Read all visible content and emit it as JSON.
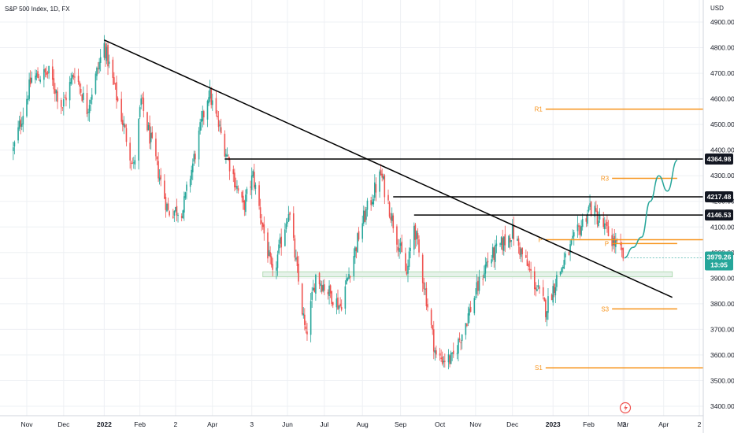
{
  "header": {
    "title": "S&P 500 Index, 1D, FX"
  },
  "colors": {
    "up": "#26a69a",
    "down": "#ef5350",
    "trendline": "#000000",
    "pivot": "#f7931a",
    "projection": "#26a69a",
    "grid": "#eef0f4",
    "zone_fill": "#e6f2ea",
    "zone_stroke": "#a5d6a7",
    "current_price_bg": "#26a69a"
  },
  "chart_data": {
    "type": "candlestick",
    "title": "S&P 500 Index, 1D, FX",
    "y_axis": {
      "unit": "USD",
      "ylim": [
        3340,
        4990
      ],
      "ticks": [
        3400,
        3500,
        3600,
        3700,
        3800,
        3900,
        4000,
        4100,
        4200,
        4300,
        4400,
        4500,
        4600,
        4700,
        4800,
        4900
      ],
      "tick_labels": [
        "3400.00",
        "3500.00",
        "3600.00",
        "3700.00",
        "3800.00",
        "3900.00",
        "4000.00",
        "4100.00",
        "4200.00",
        "4300.00",
        "4400.00",
        "4500.00",
        "4600.00",
        "4700.00",
        "4800.00",
        "4900.00"
      ]
    },
    "x_axis": {
      "tick_labels": [
        {
          "label": "Nov",
          "date": "2021-11-01",
          "bold": false
        },
        {
          "label": "Dec",
          "date": "2021-12-01",
          "bold": false
        },
        {
          "label": "2022",
          "date": "2022-01-03",
          "bold": true
        },
        {
          "label": "Feb",
          "date": "2022-02-01",
          "bold": false
        },
        {
          "label": "2",
          "date": "2022-03-02",
          "bold": false
        },
        {
          "label": "Apr",
          "date": "2022-04-01",
          "bold": false
        },
        {
          "label": "3",
          "date": "2022-05-03",
          "bold": false
        },
        {
          "label": "Jun",
          "date": "2022-06-01",
          "bold": false
        },
        {
          "label": "Jul",
          "date": "2022-07-01",
          "bold": false
        },
        {
          "label": "Aug",
          "date": "2022-08-01",
          "bold": false
        },
        {
          "label": "Sep",
          "date": "2022-09-01",
          "bold": false
        },
        {
          "label": "Oct",
          "date": "2022-10-03",
          "bold": false
        },
        {
          "label": "Nov",
          "date": "2022-11-01",
          "bold": false
        },
        {
          "label": "Dec",
          "date": "2022-12-01",
          "bold": false
        },
        {
          "label": "2023",
          "date": "2023-01-03",
          "bold": true
        },
        {
          "label": "Feb",
          "date": "2023-02-01",
          "bold": false
        },
        {
          "label": "Mar",
          "date": "2023-03-01",
          "bold": false
        },
        {
          "label": "2",
          "date": "2023-03-02",
          "bold": false
        },
        {
          "label": "Apr",
          "date": "2023-04-03",
          "bold": false
        },
        {
          "label": "2",
          "date": "2023-05-02",
          "bold": false
        }
      ]
    },
    "price_path": [
      {
        "date": "2021-10-21",
        "close": 4400
      },
      {
        "date": "2021-11-05",
        "close": 4680
      },
      {
        "date": "2021-11-19",
        "close": 4700
      },
      {
        "date": "2021-11-30",
        "close": 4570
      },
      {
        "date": "2021-12-10",
        "close": 4710
      },
      {
        "date": "2021-12-20",
        "close": 4560
      },
      {
        "date": "2022-01-03",
        "close": 4810
      },
      {
        "date": "2022-01-10",
        "close": 4670
      },
      {
        "date": "2022-01-27",
        "close": 4330
      },
      {
        "date": "2022-02-02",
        "close": 4590
      },
      {
        "date": "2022-02-24",
        "close": 4160
      },
      {
        "date": "2022-03-08",
        "close": 4170
      },
      {
        "date": "2022-03-29",
        "close": 4630
      },
      {
        "date": "2022-04-11",
        "close": 4410
      },
      {
        "date": "2022-04-26",
        "close": 4175
      },
      {
        "date": "2022-05-04",
        "close": 4300
      },
      {
        "date": "2022-05-20",
        "close": 3900
      },
      {
        "date": "2022-06-02",
        "close": 4170
      },
      {
        "date": "2022-06-16",
        "close": 3670
      },
      {
        "date": "2022-06-24",
        "close": 3910
      },
      {
        "date": "2022-07-14",
        "close": 3790
      },
      {
        "date": "2022-08-01",
        "close": 4120
      },
      {
        "date": "2022-08-16",
        "close": 4305
      },
      {
        "date": "2022-09-06",
        "close": 3910
      },
      {
        "date": "2022-09-12",
        "close": 4110
      },
      {
        "date": "2022-09-30",
        "close": 3590
      },
      {
        "date": "2022-10-13",
        "close": 3580
      },
      {
        "date": "2022-11-10",
        "close": 3960
      },
      {
        "date": "2022-12-01",
        "close": 4080
      },
      {
        "date": "2022-12-28",
        "close": 3780
      },
      {
        "date": "2023-01-06",
        "close": 3900
      },
      {
        "date": "2023-02-02",
        "close": 4180
      },
      {
        "date": "2023-02-16",
        "close": 4080
      },
      {
        "date": "2023-03-02",
        "close": 3979
      }
    ],
    "horizontal_levels": [
      {
        "label": "4364.98",
        "price": 4364.98,
        "from_date": "2022-04-11"
      },
      {
        "label": "4217.48",
        "price": 4217.48,
        "from_date": "2022-08-26"
      },
      {
        "label": "4146.53",
        "price": 4146.53,
        "from_date": "2022-09-12"
      }
    ],
    "trendline": {
      "start": {
        "date": "2022-01-03",
        "price": 4830
      },
      "end": {
        "date": "2023-04-10",
        "price": 3825
      }
    },
    "pivots": [
      {
        "label": "R1",
        "price": 4560,
        "from_date": "2022-12-28"
      },
      {
        "label": "R3",
        "price": 4290,
        "from_date": "2023-02-20"
      },
      {
        "label": "P",
        "price": 4050,
        "from_date": "2022-12-28"
      },
      {
        "label": "P",
        "price": 4035,
        "from_date": "2023-02-20"
      },
      {
        "label": "S3",
        "price": 3780,
        "from_date": "2023-02-20"
      },
      {
        "label": "S1",
        "price": 3550,
        "from_date": "2022-12-28"
      }
    ],
    "support_zone": {
      "low": 3905,
      "high": 3925,
      "from_date": "2022-05-12",
      "to_date": "2023-04-10"
    },
    "projection_path": [
      {
        "date": "2023-03-02",
        "price": 3979
      },
      {
        "date": "2023-03-09",
        "price": 4020
      },
      {
        "date": "2023-03-16",
        "price": 4060
      },
      {
        "date": "2023-03-23",
        "price": 4200
      },
      {
        "date": "2023-03-30",
        "price": 4300
      },
      {
        "date": "2023-04-06",
        "price": 4240
      },
      {
        "date": "2023-04-14",
        "price": 4360
      }
    ],
    "current_price": {
      "price": 3979.26,
      "label": "3979.26",
      "countdown": "13:05"
    }
  }
}
